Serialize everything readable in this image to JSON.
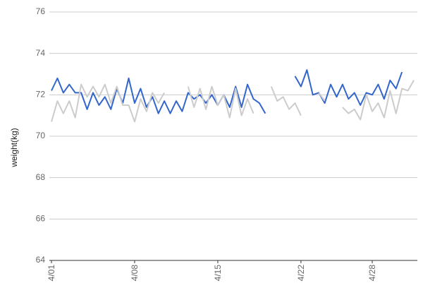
{
  "chart_data": {
    "type": "line",
    "y_label": "weight(kg)",
    "categories": [
      "4/01",
      null,
      null,
      null,
      null,
      null,
      null,
      null,
      null,
      null,
      null,
      null,
      null,
      null,
      "4/08",
      null,
      null,
      null,
      null,
      null,
      null,
      null,
      null,
      null,
      null,
      null,
      null,
      null,
      "4/15",
      null,
      null,
      null,
      null,
      null,
      null,
      null,
      null,
      null,
      null,
      null,
      null,
      null,
      "4/22",
      null,
      null,
      null,
      null,
      null,
      null,
      null,
      null,
      null,
      null,
      null,
      "4/28",
      null,
      null,
      null,
      null,
      null,
      null,
      null
    ],
    "series": [
      {
        "color": "#3366cc",
        "values": [
          72.2,
          72.8,
          72.1,
          72.5,
          72.1,
          72.1,
          71.3,
          72.1,
          71.5,
          71.9,
          71.3,
          72.3,
          71.6,
          72.8,
          71.6,
          72.3,
          71.4,
          71.9,
          71.1,
          71.7,
          71.1,
          71.7,
          71.2,
          72.1,
          71.8,
          72.0,
          71.6,
          72.0,
          71.5,
          72.0,
          71.4,
          72.4,
          71.4,
          72.5,
          71.8,
          71.6,
          71.1,
          null,
          null,
          null,
          null,
          72.9,
          72.4,
          73.2,
          72.0,
          72.1,
          71.6,
          72.5,
          71.9,
          72.5,
          71.8,
          72.1,
          71.5,
          72.1,
          72.0,
          72.5,
          71.8,
          72.7,
          72.3,
          73.1,
          null,
          null
        ]
      },
      {
        "color": "#cccccc",
        "values": [
          70.7,
          71.7,
          71.1,
          71.7,
          70.9,
          72.5,
          71.9,
          72.4,
          71.9,
          72.5,
          71.6,
          72.4,
          71.5,
          71.5,
          70.7,
          71.8,
          71.2,
          72.1,
          71.6,
          72.1,
          null,
          null,
          null,
          72.4,
          71.4,
          72.3,
          71.3,
          72.4,
          71.5,
          72.0,
          70.9,
          72.3,
          71.0,
          71.8,
          71.1,
          null,
          null,
          72.4,
          71.7,
          71.9,
          71.3,
          71.6,
          71.0,
          null,
          null,
          72.1,
          71.7,
          null,
          null,
          71.4,
          71.1,
          71.3,
          70.8,
          72.0,
          71.2,
          71.6,
          70.9,
          72.2,
          71.1,
          72.3,
          72.2,
          72.7
        ]
      }
    ],
    "ylim": [
      64,
      76
    ],
    "yticks": [
      64,
      66,
      68,
      70,
      72,
      74,
      76
    ],
    "grid": true
  }
}
